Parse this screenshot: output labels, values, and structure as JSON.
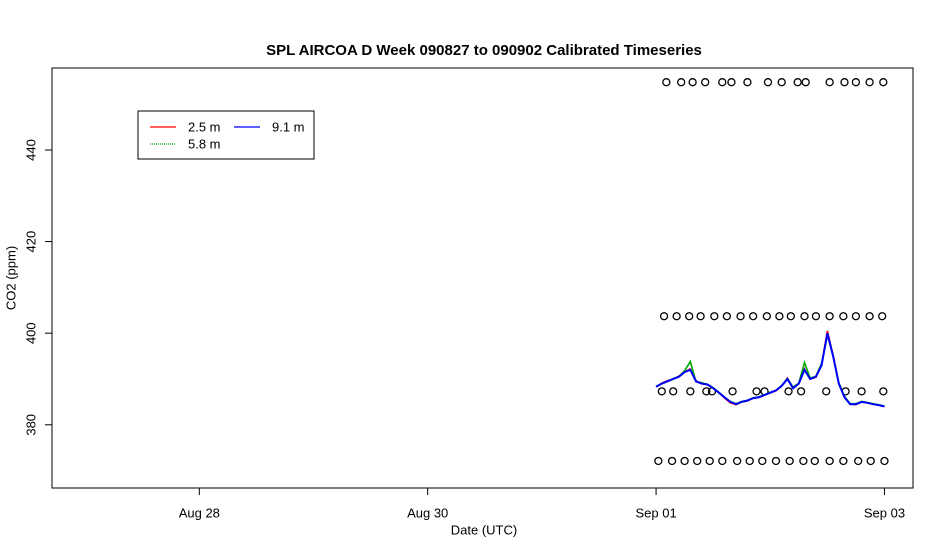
{
  "chart_data": {
    "type": "line",
    "title": "SPL AIRCOA D  Week 090827 to 090902  Calibrated Timeseries",
    "x_label": "Date (UTC)",
    "y_label": "CO2 (ppm)",
    "xlim": [
      238.71,
      246.25
    ],
    "ylim": [
      366.2,
      457.9
    ],
    "xticks": [
      {
        "value": 240,
        "label": "Aug 28"
      },
      {
        "value": 242,
        "label": "Aug 30"
      },
      {
        "value": 244,
        "label": "Sep 01"
      },
      {
        "value": 246,
        "label": "Sep 03"
      }
    ],
    "yticks": [
      380,
      400,
      420,
      440
    ],
    "legend_position": "topleft",
    "x": [
      244.0,
      244.05,
      244.1,
      244.15,
      244.2,
      244.25,
      244.3,
      244.35,
      244.4,
      244.45,
      244.5,
      244.55,
      244.6,
      244.65,
      244.7,
      244.75,
      244.8,
      244.85,
      244.9,
      244.95,
      245.0,
      245.05,
      245.1,
      245.15,
      245.2,
      245.25,
      245.3,
      245.35,
      245.4,
      245.45,
      245.5,
      245.55,
      245.6,
      245.65,
      245.7,
      245.75,
      245.8,
      245.85,
      245.9,
      245.95,
      246.0
    ],
    "series": [
      {
        "name": "2.5 m",
        "color": "#ff0000",
        "values": [
          388.3,
          389.1,
          389.6,
          390.0,
          390.6,
          391.5,
          392.2,
          389.6,
          389.0,
          388.7,
          388.0,
          387.0,
          385.8,
          384.8,
          384.4,
          385.0,
          385.2,
          385.8,
          386.0,
          386.5,
          387.0,
          387.4,
          388.5,
          390.2,
          388.0,
          389.0,
          392.2,
          390.0,
          390.4,
          393.2,
          400.5,
          395.2,
          389.0,
          386.0,
          384.5,
          384.4,
          385.0,
          384.8,
          384.5,
          384.3,
          384.0
        ]
      },
      {
        "name": "5.8 m",
        "color": "#00aa00",
        "values": [
          388.4,
          389.0,
          389.4,
          390.1,
          390.5,
          391.8,
          393.8,
          389.4,
          389.2,
          388.8,
          388.1,
          387.1,
          386.0,
          385.1,
          384.6,
          385.1,
          385.3,
          385.9,
          386.1,
          386.6,
          387.1,
          387.5,
          388.6,
          390.1,
          388.2,
          389.1,
          393.6,
          390.2,
          390.6,
          393.4,
          399.6,
          395.0,
          389.2,
          386.2,
          384.6,
          384.6,
          385.1,
          384.9,
          384.6,
          384.4,
          384.1
        ]
      },
      {
        "name": "9.1 m",
        "color": "#0000ff",
        "values": [
          388.3,
          389.0,
          389.5,
          390.0,
          390.5,
          391.5,
          392.0,
          389.5,
          389.0,
          388.8,
          388.0,
          387.0,
          386.0,
          385.0,
          384.5,
          385.0,
          385.3,
          385.8,
          386.0,
          386.5,
          387.0,
          387.5,
          388.5,
          390.0,
          388.0,
          389.0,
          392.0,
          390.0,
          390.5,
          393.0,
          400.0,
          395.0,
          389.0,
          386.0,
          384.5,
          384.5,
          385.0,
          384.8,
          384.5,
          384.3,
          384.0
        ]
      }
    ],
    "calibration": {
      "x": [
        244.09,
        244.22,
        244.32,
        244.43,
        244.58,
        244.66,
        244.8,
        244.98,
        245.1,
        245.24,
        245.31,
        245.52,
        245.65,
        245.75,
        245.87,
        245.99,
        244.07,
        244.18,
        244.29,
        244.39,
        244.51,
        244.62,
        244.74,
        244.85,
        244.97,
        245.08,
        245.18,
        245.3,
        245.4,
        245.52,
        245.64,
        245.75,
        245.87,
        245.98,
        244.05,
        244.15,
        244.3,
        244.44,
        244.49,
        244.67,
        244.88,
        244.95,
        245.16,
        245.27,
        245.49,
        245.66,
        245.8,
        245.99,
        244.02,
        244.14,
        244.25,
        244.36,
        244.47,
        244.58,
        244.71,
        244.82,
        244.93,
        245.05,
        245.17,
        245.29,
        245.39,
        245.52,
        245.64,
        245.77,
        245.88,
        246.0
      ],
      "values": [
        454.8,
        454.8,
        454.8,
        454.8,
        454.8,
        454.8,
        454.8,
        454.8,
        454.8,
        454.8,
        454.8,
        454.8,
        454.8,
        454.8,
        454.8,
        454.8,
        403.7,
        403.7,
        403.7,
        403.7,
        403.7,
        403.7,
        403.7,
        403.7,
        403.7,
        403.7,
        403.7,
        403.7,
        403.7,
        403.7,
        403.7,
        403.7,
        403.7,
        403.7,
        387.3,
        387.3,
        387.3,
        387.3,
        387.3,
        387.3,
        387.3,
        387.3,
        387.3,
        387.3,
        387.3,
        387.3,
        387.3,
        387.3,
        372.1,
        372.1,
        372.1,
        372.1,
        372.1,
        372.1,
        372.1,
        372.1,
        372.1,
        372.1,
        372.1,
        372.1,
        372.1,
        372.1,
        372.1,
        372.1,
        372.1,
        372.1
      ]
    }
  }
}
